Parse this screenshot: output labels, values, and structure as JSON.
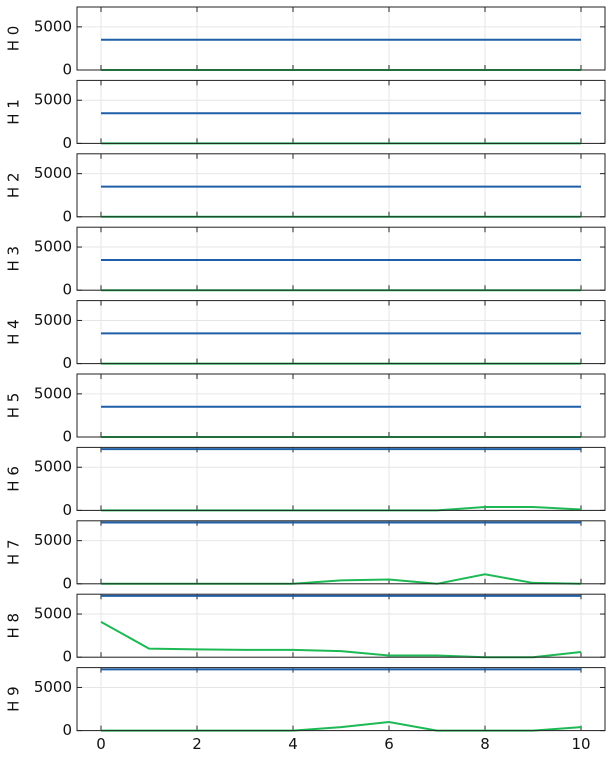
{
  "chart_data": [
    {
      "type": "line",
      "ylabel": "H 0",
      "x": [
        0,
        1,
        2,
        3,
        4,
        5,
        6,
        7,
        8,
        9,
        10
      ],
      "xlim": [
        -0.5,
        10.5
      ],
      "ylim": [
        0,
        7300
      ],
      "yticks": [
        0,
        5000
      ],
      "xticks": [
        0,
        2,
        4,
        6,
        8,
        10
      ],
      "grid": true,
      "series": [
        {
          "color": "#1f5fa8",
          "values": [
            3500,
            3500,
            3500,
            3500,
            3500,
            3500,
            3500,
            3500,
            3500,
            3500,
            3500
          ]
        },
        {
          "color": "#1db954",
          "values": [
            0,
            0,
            0,
            0,
            0,
            0,
            0,
            0,
            0,
            0,
            0
          ]
        }
      ]
    },
    {
      "type": "line",
      "ylabel": "H 1",
      "x": [
        0,
        1,
        2,
        3,
        4,
        5,
        6,
        7,
        8,
        9,
        10
      ],
      "xlim": [
        -0.5,
        10.5
      ],
      "ylim": [
        0,
        7300
      ],
      "yticks": [
        0,
        5000
      ],
      "xticks": [
        0,
        2,
        4,
        6,
        8,
        10
      ],
      "grid": true,
      "series": [
        {
          "color": "#1f5fa8",
          "values": [
            3500,
            3500,
            3500,
            3500,
            3500,
            3500,
            3500,
            3500,
            3500,
            3500,
            3500
          ]
        },
        {
          "color": "#1db954",
          "values": [
            0,
            0,
            0,
            0,
            0,
            0,
            0,
            0,
            0,
            0,
            0
          ]
        }
      ]
    },
    {
      "type": "line",
      "ylabel": "H 2",
      "x": [
        0,
        1,
        2,
        3,
        4,
        5,
        6,
        7,
        8,
        9,
        10
      ],
      "xlim": [
        -0.5,
        10.5
      ],
      "ylim": [
        0,
        7300
      ],
      "yticks": [
        0,
        5000
      ],
      "xticks": [
        0,
        2,
        4,
        6,
        8,
        10
      ],
      "grid": true,
      "series": [
        {
          "color": "#1f5fa8",
          "values": [
            3500,
            3500,
            3500,
            3500,
            3500,
            3500,
            3500,
            3500,
            3500,
            3500,
            3500
          ]
        },
        {
          "color": "#1db954",
          "values": [
            0,
            0,
            0,
            0,
            0,
            0,
            0,
            0,
            0,
            0,
            0
          ]
        }
      ]
    },
    {
      "type": "line",
      "ylabel": "H 3",
      "x": [
        0,
        1,
        2,
        3,
        4,
        5,
        6,
        7,
        8,
        9,
        10
      ],
      "xlim": [
        -0.5,
        10.5
      ],
      "ylim": [
        0,
        7300
      ],
      "yticks": [
        0,
        5000
      ],
      "xticks": [
        0,
        2,
        4,
        6,
        8,
        10
      ],
      "grid": true,
      "series": [
        {
          "color": "#1f5fa8",
          "values": [
            3500,
            3500,
            3500,
            3500,
            3500,
            3500,
            3500,
            3500,
            3500,
            3500,
            3500
          ]
        },
        {
          "color": "#1db954",
          "values": [
            0,
            0,
            0,
            0,
            0,
            0,
            0,
            0,
            0,
            0,
            0
          ]
        }
      ]
    },
    {
      "type": "line",
      "ylabel": "H 4",
      "x": [
        0,
        1,
        2,
        3,
        4,
        5,
        6,
        7,
        8,
        9,
        10
      ],
      "xlim": [
        -0.5,
        10.5
      ],
      "ylim": [
        0,
        7300
      ],
      "yticks": [
        0,
        5000
      ],
      "xticks": [
        0,
        2,
        4,
        6,
        8,
        10
      ],
      "grid": true,
      "series": [
        {
          "color": "#1f5fa8",
          "values": [
            3500,
            3500,
            3500,
            3500,
            3500,
            3500,
            3500,
            3500,
            3500,
            3500,
            3500
          ]
        },
        {
          "color": "#1db954",
          "values": [
            0,
            0,
            0,
            0,
            0,
            0,
            0,
            0,
            0,
            0,
            0
          ]
        }
      ]
    },
    {
      "type": "line",
      "ylabel": "H 5",
      "x": [
        0,
        1,
        2,
        3,
        4,
        5,
        6,
        7,
        8,
        9,
        10
      ],
      "xlim": [
        -0.5,
        10.5
      ],
      "ylim": [
        0,
        7300
      ],
      "yticks": [
        0,
        5000
      ],
      "xticks": [
        0,
        2,
        4,
        6,
        8,
        10
      ],
      "grid": true,
      "series": [
        {
          "color": "#1f5fa8",
          "values": [
            3500,
            3500,
            3500,
            3500,
            3500,
            3500,
            3500,
            3500,
            3500,
            3500,
            3500
          ]
        },
        {
          "color": "#1db954",
          "values": [
            0,
            0,
            0,
            0,
            0,
            0,
            0,
            0,
            0,
            0,
            0
          ]
        }
      ]
    },
    {
      "type": "line",
      "ylabel": "H 6",
      "x": [
        0,
        1,
        2,
        3,
        4,
        5,
        6,
        7,
        8,
        9,
        10
      ],
      "xlim": [
        -0.5,
        10.5
      ],
      "ylim": [
        0,
        7300
      ],
      "yticks": [
        0,
        5000
      ],
      "xticks": [
        0,
        2,
        4,
        6,
        8,
        10
      ],
      "grid": true,
      "series": [
        {
          "color": "#1f5fa8",
          "values": [
            7100,
            7100,
            7100,
            7100,
            7100,
            7100,
            7100,
            7100,
            7100,
            7100,
            7100
          ]
        },
        {
          "color": "#1db954",
          "values": [
            0,
            0,
            0,
            0,
            0,
            0,
            0,
            0,
            400,
            400,
            100
          ]
        }
      ]
    },
    {
      "type": "line",
      "ylabel": "H 7",
      "x": [
        0,
        1,
        2,
        3,
        4,
        5,
        6,
        7,
        8,
        9,
        10
      ],
      "xlim": [
        -0.5,
        10.5
      ],
      "ylim": [
        0,
        7300
      ],
      "yticks": [
        0,
        5000
      ],
      "xticks": [
        0,
        2,
        4,
        6,
        8,
        10
      ],
      "grid": true,
      "series": [
        {
          "color": "#1f5fa8",
          "values": [
            7100,
            7100,
            7100,
            7100,
            7100,
            7100,
            7100,
            7100,
            7100,
            7100,
            7100
          ]
        },
        {
          "color": "#1db954",
          "values": [
            0,
            0,
            0,
            0,
            0,
            400,
            500,
            0,
            1100,
            100,
            0
          ]
        }
      ]
    },
    {
      "type": "line",
      "ylabel": "H 8",
      "x": [
        0,
        1,
        2,
        3,
        4,
        5,
        6,
        7,
        8,
        9,
        10
      ],
      "xlim": [
        -0.5,
        10.5
      ],
      "ylim": [
        0,
        7300
      ],
      "yticks": [
        0,
        5000
      ],
      "xticks": [
        0,
        2,
        4,
        6,
        8,
        10
      ],
      "grid": true,
      "series": [
        {
          "color": "#1f5fa8",
          "values": [
            7100,
            7100,
            7100,
            7100,
            7100,
            7100,
            7100,
            7100,
            7100,
            7100,
            7100
          ]
        },
        {
          "color": "#1db954",
          "values": [
            4100,
            1000,
            900,
            850,
            850,
            700,
            200,
            200,
            0,
            0,
            600
          ]
        }
      ]
    },
    {
      "type": "line",
      "ylabel": "H 9",
      "x": [
        0,
        1,
        2,
        3,
        4,
        5,
        6,
        7,
        8,
        9,
        10
      ],
      "xlim": [
        -0.5,
        10.5
      ],
      "ylim": [
        0,
        7300
      ],
      "yticks": [
        0,
        5000
      ],
      "xticks": [
        0,
        2,
        4,
        6,
        8,
        10
      ],
      "grid": true,
      "xtick_labels_shown": true,
      "series": [
        {
          "color": "#1f5fa8",
          "values": [
            7100,
            7100,
            7100,
            7100,
            7100,
            7100,
            7100,
            7100,
            7100,
            7100,
            7100
          ]
        },
        {
          "color": "#1db954",
          "values": [
            0,
            0,
            0,
            0,
            0,
            400,
            1000,
            0,
            0,
            0,
            400
          ]
        }
      ]
    }
  ]
}
